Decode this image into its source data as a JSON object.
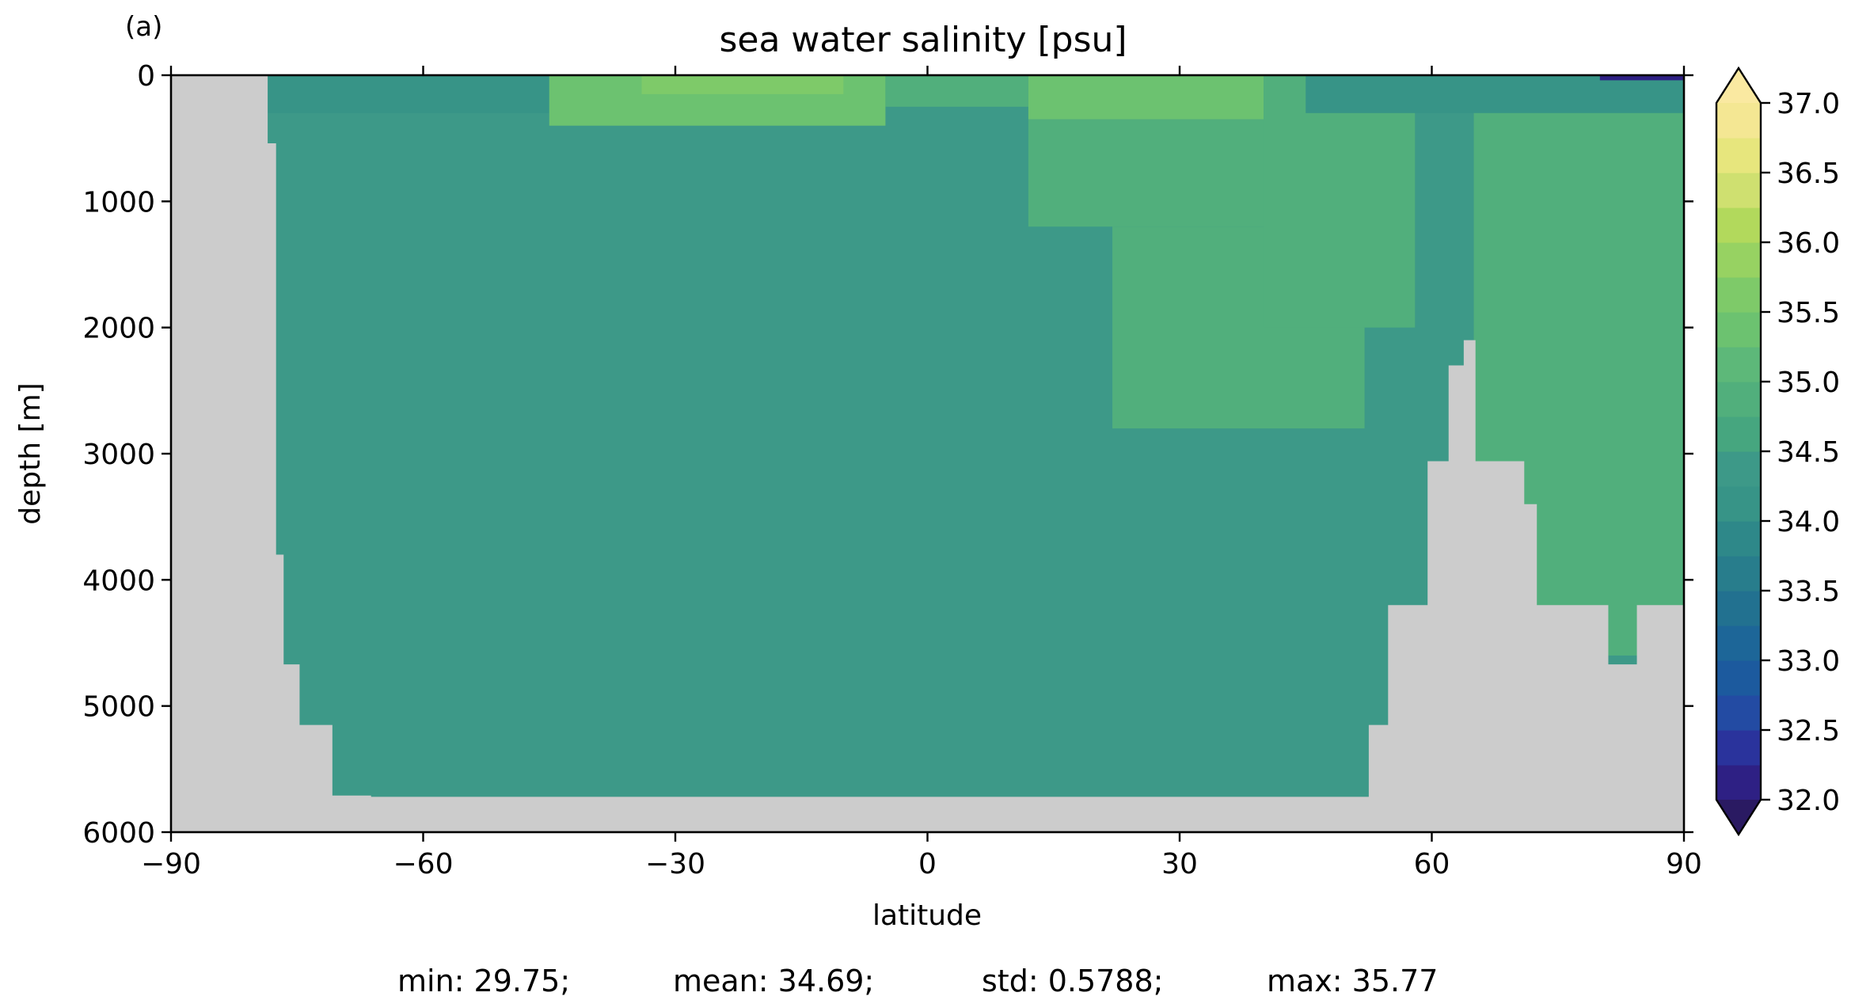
{
  "chart_data": {
    "type": "heatmap",
    "panel_label": "(a)",
    "title": "sea water salinity [psu]",
    "xlabel": "latitude",
    "ylabel": "depth [m]",
    "xlim": [
      -90,
      90
    ],
    "ylim": [
      6000,
      0
    ],
    "x_ticks": [
      -90,
      -60,
      -30,
      0,
      30,
      60,
      90
    ],
    "x_tick_labels": [
      "−90",
      "−60",
      "−30",
      "0",
      "30",
      "60",
      "90"
    ],
    "y_ticks": [
      0,
      1000,
      2000,
      3000,
      4000,
      5000,
      6000
    ],
    "y_tick_labels": [
      "0",
      "1000",
      "2000",
      "3000",
      "4000",
      "5000",
      "6000"
    ],
    "land_color": "#cccccc",
    "colorbar": {
      "min": 32.0,
      "max": 37.0,
      "step": 0.25,
      "extend": "both",
      "ticks": [
        32.0,
        32.5,
        33.0,
        33.5,
        34.0,
        34.5,
        35.0,
        35.5,
        36.0,
        36.5,
        37.0
      ],
      "tick_labels": [
        "32.0",
        "32.5",
        "33.0",
        "33.5",
        "34.0",
        "34.5",
        "35.0",
        "35.5",
        "36.0",
        "36.5",
        "37.0"
      ],
      "colors": [
        "#2a1a62",
        "#2e2084",
        "#2a339c",
        "#234ba3",
        "#1c5a9e",
        "#1d6698",
        "#227190",
        "#287d8c",
        "#2e8889",
        "#379487",
        "#3d9988",
        "#46a67f",
        "#51af7c",
        "#5db879",
        "#6cc270",
        "#7eca69",
        "#97d262",
        "#b2d95c",
        "#cfe070",
        "#e7e67d",
        "#f4e793",
        "#fae9a1"
      ]
    },
    "land_profile": {
      "left_edge": [
        [
          -78.5,
          0
        ],
        [
          -78.5,
          500
        ],
        [
          -77.5,
          540
        ],
        [
          -76.6,
          3800
        ],
        [
          -74.7,
          4670
        ],
        [
          -70.8,
          5150
        ],
        [
          -66.2,
          5710
        ]
      ],
      "bottom_depth": 5720,
      "right_edge": [
        [
          52.5,
          5710
        ],
        [
          52.5,
          5150
        ],
        [
          54.8,
          5150
        ],
        [
          54.8,
          4200
        ],
        [
          59.5,
          4200
        ],
        [
          59.5,
          3060
        ],
        [
          62.0,
          3060
        ],
        [
          62.0,
          2300
        ],
        [
          63.8,
          2300
        ],
        [
          63.8,
          2100
        ],
        [
          65.2,
          2100
        ],
        [
          65.2,
          3060
        ],
        [
          71.0,
          3060
        ],
        [
          71.0,
          3400
        ],
        [
          72.5,
          3400
        ],
        [
          72.5,
          4200
        ],
        [
          81.0,
          4200
        ],
        [
          81.0,
          4670
        ],
        [
          84.4,
          4670
        ],
        [
          84.4,
          4200
        ],
        [
          90,
          4200
        ]
      ]
    },
    "field": {
      "deep_value": 34.35,
      "regions": [
        {
          "name": "southern_surface",
          "lat": [
            -78.5,
            -45
          ],
          "depth": [
            0,
            300
          ],
          "value": 34.1
        },
        {
          "name": "south_subtropical_surface",
          "lat": [
            -45,
            -5
          ],
          "depth": [
            0,
            400
          ],
          "value": 35.3
        },
        {
          "name": "south_subtropical_core",
          "lat": [
            -34,
            -10
          ],
          "depth": [
            0,
            150
          ],
          "value": 35.6
        },
        {
          "name": "equatorial_surface",
          "lat": [
            -5,
            12
          ],
          "depth": [
            0,
            250
          ],
          "value": 34.9
        },
        {
          "name": "north_subtropical_surface",
          "lat": [
            12,
            40
          ],
          "depth": [
            0,
            350
          ],
          "value": 35.4
        },
        {
          "name": "mediterranean_outflow",
          "lat": [
            12,
            42
          ],
          "depth": [
            350,
            1200
          ],
          "value": 34.9
        },
        {
          "name": "north_atlantic_deep",
          "lat": [
            22,
            52
          ],
          "depth": [
            1200,
            2800
          ],
          "value": 34.9
        },
        {
          "name": "north_atlantic_intermediate",
          "lat": [
            40,
            58
          ],
          "depth": [
            0,
            2000
          ],
          "value": 34.95
        },
        {
          "name": "nordic_surface",
          "lat": [
            45,
            90
          ],
          "depth": [
            0,
            300
          ],
          "value": 34.2
        },
        {
          "name": "nordic_deep",
          "lat": [
            65,
            90
          ],
          "depth": [
            300,
            4600
          ],
          "value": 34.9
        },
        {
          "name": "arctic_shelf",
          "lat": [
            80,
            90
          ],
          "depth": [
            0,
            40
          ],
          "value": 32.1
        }
      ]
    }
  },
  "stats": {
    "min": "min: 29.75;",
    "mean": "mean: 34.69;",
    "std": "std: 0.5788;",
    "max": "max: 35.77"
  }
}
